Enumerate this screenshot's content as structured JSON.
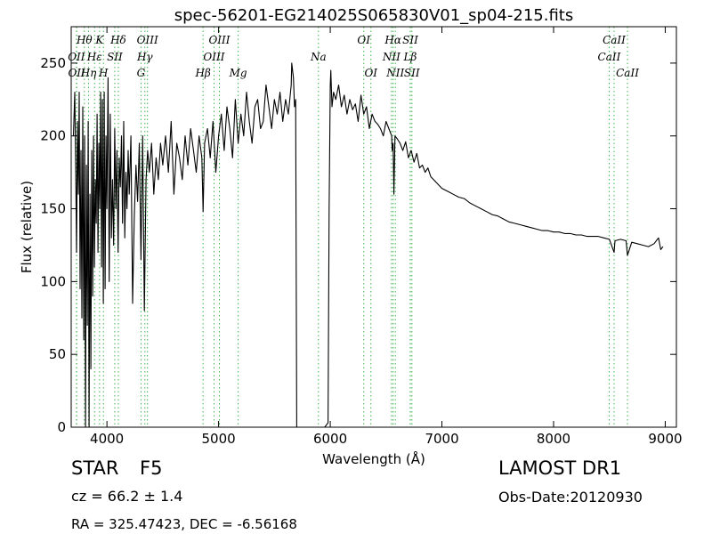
{
  "chart_data": {
    "type": "line",
    "title": "spec-56201-EG214025S065830V01_sp04-215.fits",
    "xlabel": "Wavelength (Å)",
    "ylabel": "Flux (relative)",
    "xlim": [
      3680,
      9100
    ],
    "ylim": [
      0,
      275
    ],
    "xticks": [
      4000,
      5000,
      6000,
      7000,
      8000,
      9000
    ],
    "yticks": [
      0,
      50,
      100,
      150,
      200,
      250
    ],
    "grid": false,
    "line_color": "#000000",
    "line_marker_color": "#3cb44b",
    "series": [
      {
        "x": [
          3700,
          3712,
          3720,
          3728,
          3736,
          3744,
          3752,
          3760,
          3768,
          3776,
          3784,
          3792,
          3800,
          3808,
          3816,
          3824,
          3832,
          3840,
          3848,
          3856,
          3864,
          3872,
          3880,
          3888,
          3896,
          3904,
          3912,
          3920,
          3928,
          3936,
          3944,
          3952,
          3960,
          3968,
          3976,
          3984,
          3992,
          4000,
          4010,
          4020,
          4030,
          4040,
          4050,
          4060,
          4070,
          4080,
          4090,
          4100,
          4110,
          4120,
          4130,
          4140,
          4150,
          4160,
          4170,
          4180,
          4190,
          4200,
          4215,
          4230,
          4245,
          4260,
          4275,
          4290,
          4305,
          4320,
          4335,
          4350,
          4365,
          4380,
          4400,
          4420,
          4440,
          4460,
          4480,
          4500,
          4525,
          4550,
          4575,
          4600,
          4625,
          4650,
          4675,
          4700,
          4725,
          4750,
          4775,
          4800,
          4825,
          4850,
          4861,
          4875,
          4900,
          4925,
          4950,
          4975,
          5000,
          5025,
          5050,
          5075,
          5100,
          5125,
          5150,
          5175,
          5200,
          5225,
          5250,
          5275,
          5300,
          5325,
          5350,
          5375,
          5400,
          5425,
          5450,
          5475,
          5500,
          5525,
          5550,
          5575,
          5600,
          5625,
          5650,
          5655,
          5670,
          5680,
          5690,
          5700,
          5800,
          5900,
          5950,
          5980,
          5990,
          6000,
          6005,
          6015,
          6030,
          6050,
          6075,
          6100,
          6125,
          6150,
          6175,
          6200,
          6225,
          6250,
          6275,
          6300,
          6325,
          6350,
          6375,
          6400,
          6425,
          6450,
          6475,
          6500,
          6525,
          6550,
          6555,
          6563,
          6570,
          6580,
          6600,
          6625,
          6650,
          6675,
          6700,
          6725,
          6750,
          6775,
          6800,
          6825,
          6850,
          6875,
          6900,
          6925,
          6950,
          6975,
          7000,
          7050,
          7100,
          7150,
          7200,
          7250,
          7300,
          7350,
          7400,
          7450,
          7500,
          7550,
          7600,
          7650,
          7700,
          7750,
          7800,
          7850,
          7900,
          7950,
          8000,
          8050,
          8100,
          8150,
          8200,
          8250,
          8300,
          8350,
          8400,
          8450,
          8500,
          8542,
          8550,
          8600,
          8650,
          8662,
          8700,
          8750,
          8800,
          8850,
          8900,
          8940,
          8960,
          8980
        ],
        "y": [
          200,
          230,
          180,
          120,
          210,
          160,
          230,
          95,
          190,
          75,
          220,
          60,
          200,
          0,
          180,
          70,
          210,
          0,
          160,
          40,
          190,
          90,
          200,
          110,
          170,
          140,
          215,
          120,
          195,
          150,
          230,
          110,
          225,
          85,
          230,
          95,
          200,
          150,
          240,
          100,
          215,
          130,
          170,
          125,
          205,
          150,
          190,
          120,
          185,
          165,
          200,
          140,
          210,
          130,
          175,
          150,
          190,
          160,
          200,
          85,
          145,
          180,
          155,
          195,
          115,
          200,
          80,
          170,
          190,
          175,
          195,
          160,
          185,
          170,
          195,
          180,
          200,
          175,
          210,
          160,
          195,
          185,
          170,
          200,
          180,
          205,
          190,
          175,
          200,
          185,
          148,
          195,
          205,
          185,
          210,
          175,
          200,
          215,
          190,
          220,
          205,
          185,
          225,
          195,
          215,
          200,
          230,
          210,
          195,
          220,
          225,
          205,
          210,
          235,
          220,
          205,
          225,
          215,
          230,
          210,
          225,
          215,
          235,
          250,
          240,
          220,
          225,
          0,
          0,
          0,
          0,
          3,
          150,
          235,
          245,
          220,
          230,
          225,
          235,
          220,
          228,
          215,
          225,
          218,
          222,
          210,
          228,
          215,
          220,
          205,
          215,
          210,
          208,
          205,
          200,
          210,
          205,
          200,
          190,
          195,
          160,
          200,
          198,
          195,
          190,
          196,
          185,
          190,
          182,
          188,
          178,
          180,
          175,
          178,
          172,
          170,
          168,
          166,
          164,
          162,
          160,
          158,
          157,
          154,
          152,
          150,
          148,
          146,
          145,
          143,
          141,
          140,
          139,
          138,
          137,
          136,
          135,
          135,
          134,
          134,
          133,
          133,
          132,
          132,
          131,
          131,
          131,
          130,
          129,
          120,
          128,
          129,
          128,
          118,
          127,
          126,
          125,
          124,
          126,
          130,
          122,
          124
        ]
      }
    ],
    "annotations": [
      {
        "label": "OII",
        "x": 3727,
        "row": 2
      },
      {
        "label": "OII",
        "x": 3729,
        "row": 3
      },
      {
        "label": "Hθ",
        "x": 3798,
        "row": 1
      },
      {
        "label": "Hη",
        "x": 3835,
        "row": 3
      },
      {
        "label": "Hε",
        "x": 3889,
        "row": 2
      },
      {
        "label": "K",
        "x": 3934,
        "row": 1
      },
      {
        "label": "H",
        "x": 3969,
        "row": 3
      },
      {
        "label": "SII",
        "x": 4070,
        "row": 2
      },
      {
        "label": "Hδ",
        "x": 4102,
        "row": 1
      },
      {
        "label": "G",
        "x": 4305,
        "row": 3
      },
      {
        "label": "Hγ",
        "x": 4340,
        "row": 2
      },
      {
        "label": "OIII",
        "x": 4363,
        "row": 1
      },
      {
        "label": "Hβ",
        "x": 4861,
        "row": 3
      },
      {
        "label": "OIII",
        "x": 4959,
        "row": 2
      },
      {
        "label": "OIII",
        "x": 5007,
        "row": 1
      },
      {
        "label": "Mg",
        "x": 5175,
        "row": 3
      },
      {
        "label": "Na",
        "x": 5894,
        "row": 2
      },
      {
        "label": "OI",
        "x": 6300,
        "row": 1
      },
      {
        "label": "OI",
        "x": 6364,
        "row": 3
      },
      {
        "label": "NII",
        "x": 6548,
        "row": 2
      },
      {
        "label": "Hα",
        "x": 6563,
        "row": 1
      },
      {
        "label": "NII",
        "x": 6583,
        "row": 3
      },
      {
        "label": "Lβ",
        "x": 6716,
        "row": 2
      },
      {
        "label": "SII",
        "x": 6717,
        "row": 1
      },
      {
        "label": "SII",
        "x": 6731,
        "row": 3
      },
      {
        "label": "CaII",
        "x": 8498,
        "row": 2
      },
      {
        "label": "CaII",
        "x": 8542,
        "row": 1
      },
      {
        "label": "CaII",
        "x": 8662,
        "row": 3
      }
    ]
  },
  "info": {
    "class_label": "STAR",
    "subclass": "F5",
    "redshift_text": "cz = 66.2 ± 1.4",
    "survey": "LAMOST DR1",
    "obs_date": "Obs-Date:20120930",
    "coords": "RA = 325.47423, DEC = -6.56168"
  }
}
